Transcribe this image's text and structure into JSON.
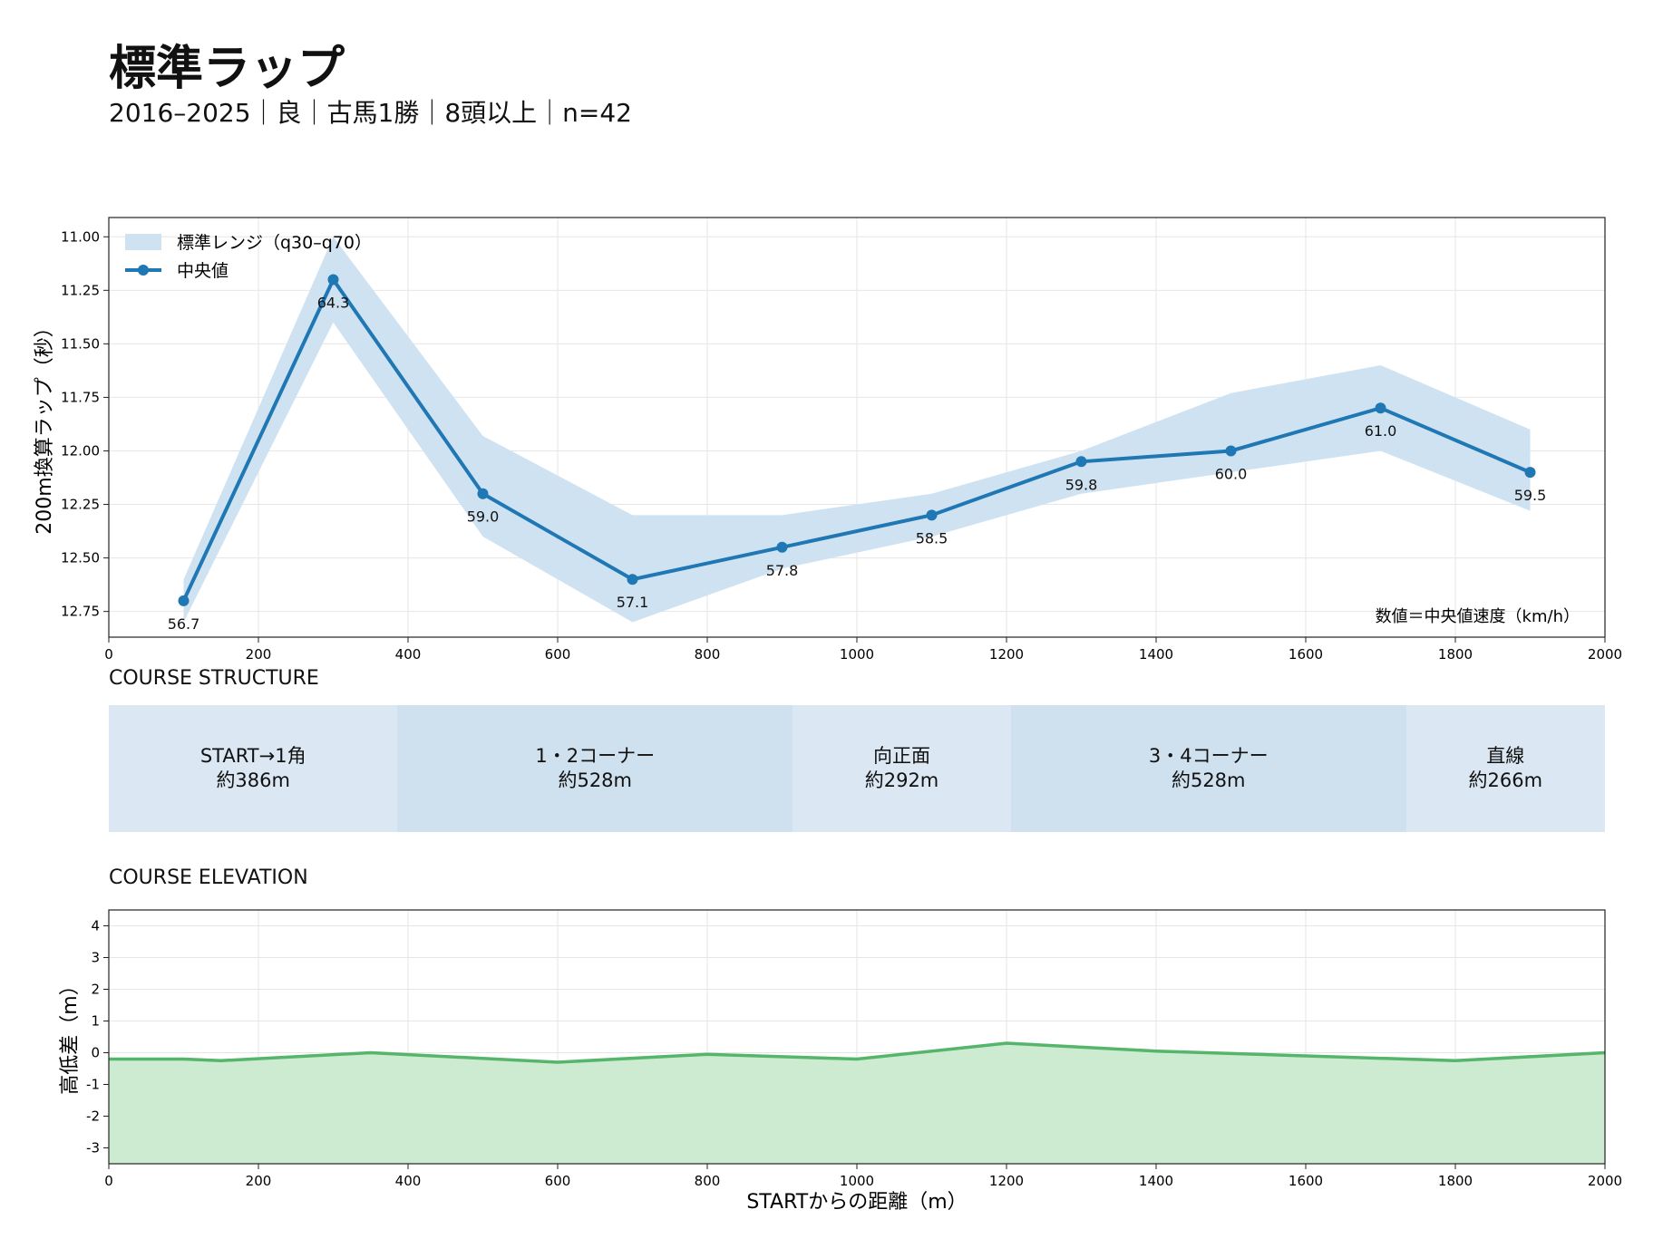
{
  "header": {
    "title": "標準ラップ",
    "subtitle": "2016–2025｜良｜古馬1勝｜8頭以上｜n=42"
  },
  "colors": {
    "median_line": "#1f77b4",
    "band": "#cfe2f2",
    "elevation_line": "#55b56a",
    "elevation_fill": "#cdebd1",
    "segment_light": "#dbe8f4",
    "segment_dark": "#cfe1ef"
  },
  "course_structure": {
    "heading": "COURSE STRUCTURE",
    "segments": [
      {
        "name": "START→1角",
        "length": "約386m",
        "start_m": 0,
        "end_m": 386
      },
      {
        "name": "1・2コーナー",
        "length": "約528m",
        "start_m": 386,
        "end_m": 914
      },
      {
        "name": "向正面",
        "length": "約292m",
        "start_m": 914,
        "end_m": 1206
      },
      {
        "name": "3・4コーナー",
        "length": "約528m",
        "start_m": 1206,
        "end_m": 1734
      },
      {
        "name": "直線",
        "length": "約266m",
        "start_m": 1734,
        "end_m": 2000
      }
    ]
  },
  "course_elevation": {
    "heading": "COURSE ELEVATION"
  },
  "chart_data": [
    {
      "type": "line",
      "ylabel": "200m換算ラップ（秒）",
      "xlim": [
        0,
        2000
      ],
      "ylim": [
        12.87,
        10.91
      ],
      "y_inverted": true,
      "grid": true,
      "x_ticks": [
        0,
        200,
        400,
        600,
        800,
        1000,
        1200,
        1400,
        1600,
        1800,
        2000
      ],
      "y_ticks": [
        "11.00",
        "11.25",
        "11.50",
        "11.75",
        "12.00",
        "12.25",
        "12.50",
        "12.75"
      ],
      "legend_position": "top-left",
      "legend": {
        "band": "標準レンジ（q30–q70）",
        "line": "中央値"
      },
      "annotation": "数値＝中央値速度（km/h）",
      "x": [
        100,
        300,
        500,
        700,
        900,
        1100,
        1300,
        1500,
        1700,
        1900
      ],
      "series": [
        {
          "name": "中央値",
          "values": [
            12.7,
            11.2,
            12.2,
            12.6,
            12.45,
            12.3,
            12.05,
            12.0,
            11.8,
            12.1
          ]
        }
      ],
      "band": {
        "name": "標準レンジ（q30–q70）",
        "lower": [
          12.6,
          11.0,
          11.93,
          12.3,
          12.3,
          12.2,
          12.0,
          11.73,
          11.6,
          11.9
        ],
        "upper": [
          12.8,
          11.4,
          12.4,
          12.8,
          12.55,
          12.4,
          12.2,
          12.1,
          12.0,
          12.28
        ]
      },
      "data_labels": [
        "56.7",
        "64.3",
        "59.0",
        "57.1",
        "57.8",
        "58.5",
        "59.8",
        "60.0",
        "61.0",
        "59.5"
      ]
    },
    {
      "type": "area",
      "xlabel": "STARTからの距離（m）",
      "ylabel": "高低差（m）",
      "xlim": [
        0,
        2000
      ],
      "ylim": [
        -3.5,
        4.5
      ],
      "grid": true,
      "x_ticks": [
        0,
        200,
        400,
        600,
        800,
        1000,
        1200,
        1400,
        1600,
        1800,
        2000
      ],
      "y_ticks": [
        4,
        3,
        2,
        1,
        0,
        -1,
        -2,
        -3
      ],
      "x": [
        0,
        100,
        150,
        350,
        600,
        800,
        1000,
        1200,
        1400,
        1800,
        2000
      ],
      "values": [
        -0.2,
        -0.2,
        -0.25,
        0.0,
        -0.3,
        -0.05,
        -0.2,
        0.3,
        0.05,
        -0.25,
        0.0
      ]
    }
  ]
}
